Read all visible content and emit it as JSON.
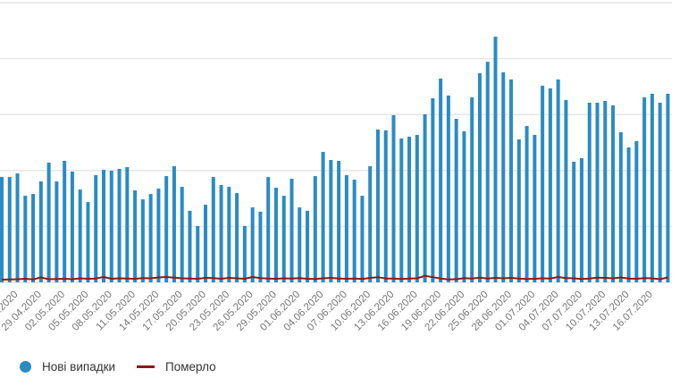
{
  "chart_data": {
    "type": "bar",
    "title": "",
    "xlabel": "",
    "ylabel": "",
    "ylim": [
      0,
      1250
    ],
    "grid": true,
    "gridline_step": 250,
    "legend_position": "bottom-left",
    "x_tick_every": 3,
    "x": [
      "24.04.2020",
      "25.04.2020",
      "26.04.2020",
      "27.04.2020",
      "28.04.2020",
      "29.04.2020",
      "30.04.2020",
      "01.05.2020",
      "02.05.2020",
      "03.05.2020",
      "04.05.2020",
      "05.05.2020",
      "06.05.2020",
      "07.05.2020",
      "08.05.2020",
      "09.05.2020",
      "10.05.2020",
      "11.05.2020",
      "12.05.2020",
      "13.05.2020",
      "14.05.2020",
      "15.05.2020",
      "16.05.2020",
      "17.05.2020",
      "18.05.2020",
      "19.05.2020",
      "20.05.2020",
      "21.05.2020",
      "22.05.2020",
      "23.05.2020",
      "24.05.2020",
      "25.05.2020",
      "26.05.2020",
      "27.05.2020",
      "28.05.2020",
      "29.05.2020",
      "30.05.2020",
      "31.05.2020",
      "01.06.2020",
      "02.06.2020",
      "03.06.2020",
      "04.06.2020",
      "05.06.2020",
      "06.06.2020",
      "07.06.2020",
      "08.06.2020",
      "09.06.2020",
      "10.06.2020",
      "11.06.2020",
      "12.06.2020",
      "13.06.2020",
      "14.06.2020",
      "15.06.2020",
      "16.06.2020",
      "17.06.2020",
      "18.06.2020",
      "19.06.2020",
      "20.06.2020",
      "21.06.2020",
      "22.06.2020",
      "23.06.2020",
      "24.06.2020",
      "25.06.2020",
      "26.06.2020",
      "27.06.2020",
      "28.06.2020",
      "29.06.2020",
      "30.06.2020",
      "01.07.2020",
      "02.07.2020",
      "03.07.2020",
      "04.07.2020",
      "05.07.2020",
      "06.07.2020",
      "07.07.2020",
      "08.07.2020",
      "09.07.2020",
      "10.07.2020",
      "11.07.2020",
      "12.07.2020",
      "13.07.2020",
      "14.07.2020",
      "15.07.2020",
      "16.07.2020",
      "17.07.2020",
      "18.07.2020"
    ],
    "tick_labels": [
      "26.04.2020",
      "29.04.2020",
      "02.05.2020",
      "05.05.2020",
      "08.05.2020",
      "11.05.2020",
      "14.05.2020",
      "17.05.2020",
      "20.05.2020",
      "23.05.2020",
      "26.05.2020",
      "29.05.2020",
      "01.06.2020",
      "04.06.2020",
      "07.06.2020",
      "10.06.2020",
      "13.06.2020",
      "16.06.2020",
      "19.06.2020",
      "22.06.2020",
      "25.06.2020",
      "28.06.2020",
      "01.07.2020",
      "04.07.2020",
      "07.07.2020",
      "10.07.2020",
      "13.07.2020",
      "16.07.2020"
    ],
    "series": [
      {
        "name": "Нові випадки",
        "type": "bar",
        "color": "#2a8bc4",
        "values": [
          471,
          471,
          487,
          387,
          395,
          451,
          535,
          451,
          543,
          495,
          415,
          359,
          479,
          503,
          499,
          507,
          515,
          411,
          371,
          395,
          419,
          475,
          519,
          427,
          320,
          252,
          347,
          471,
          435,
          427,
          399,
          252,
          335,
          316,
          471,
          423,
          387,
          463,
          335,
          320,
          475,
          583,
          547,
          543,
          479,
          459,
          387,
          519,
          683,
          679,
          747,
          643,
          651,
          659,
          751,
          823,
          911,
          835,
          731,
          675,
          827,
          935,
          986,
          1098,
          939,
          907,
          639,
          699,
          659,
          879,
          867,
          907,
          815,
          539,
          555,
          803,
          803,
          811,
          791,
          671,
          603,
          631,
          827,
          843,
          803,
          843
        ]
      },
      {
        "name": "Померло",
        "type": "line",
        "color": "#8b1a1a",
        "values": [
          8,
          9,
          10,
          12,
          9,
          18,
          10,
          11,
          12,
          10,
          14,
          12,
          13,
          20,
          12,
          14,
          13,
          12,
          15,
          14,
          18,
          20,
          17,
          14,
          13,
          12,
          16,
          15,
          12,
          16,
          14,
          12,
          20,
          15,
          13,
          12,
          14,
          13,
          15,
          12,
          11,
          14,
          16,
          13,
          12,
          13,
          11,
          16,
          19,
          13,
          13,
          11,
          13,
          14,
          25,
          19,
          13,
          9,
          10,
          15,
          13,
          17,
          13,
          16,
          14,
          16,
          13,
          11,
          12,
          14,
          13,
          20,
          15,
          14,
          11,
          13,
          17,
          16,
          14,
          18,
          13,
          12,
          15,
          14,
          10,
          18
        ]
      }
    ]
  },
  "legend": {
    "items": [
      {
        "label": "Нові випадки",
        "marker": "dot",
        "color": "#2a8bc4"
      },
      {
        "label": "Померло",
        "marker": "line",
        "color": "#8b1a1a"
      }
    ]
  },
  "colors": {
    "grid": "#e6e6e6",
    "axis_text": "#777777",
    "bar": "#2a8bc4",
    "line": "#8b1a1a"
  }
}
